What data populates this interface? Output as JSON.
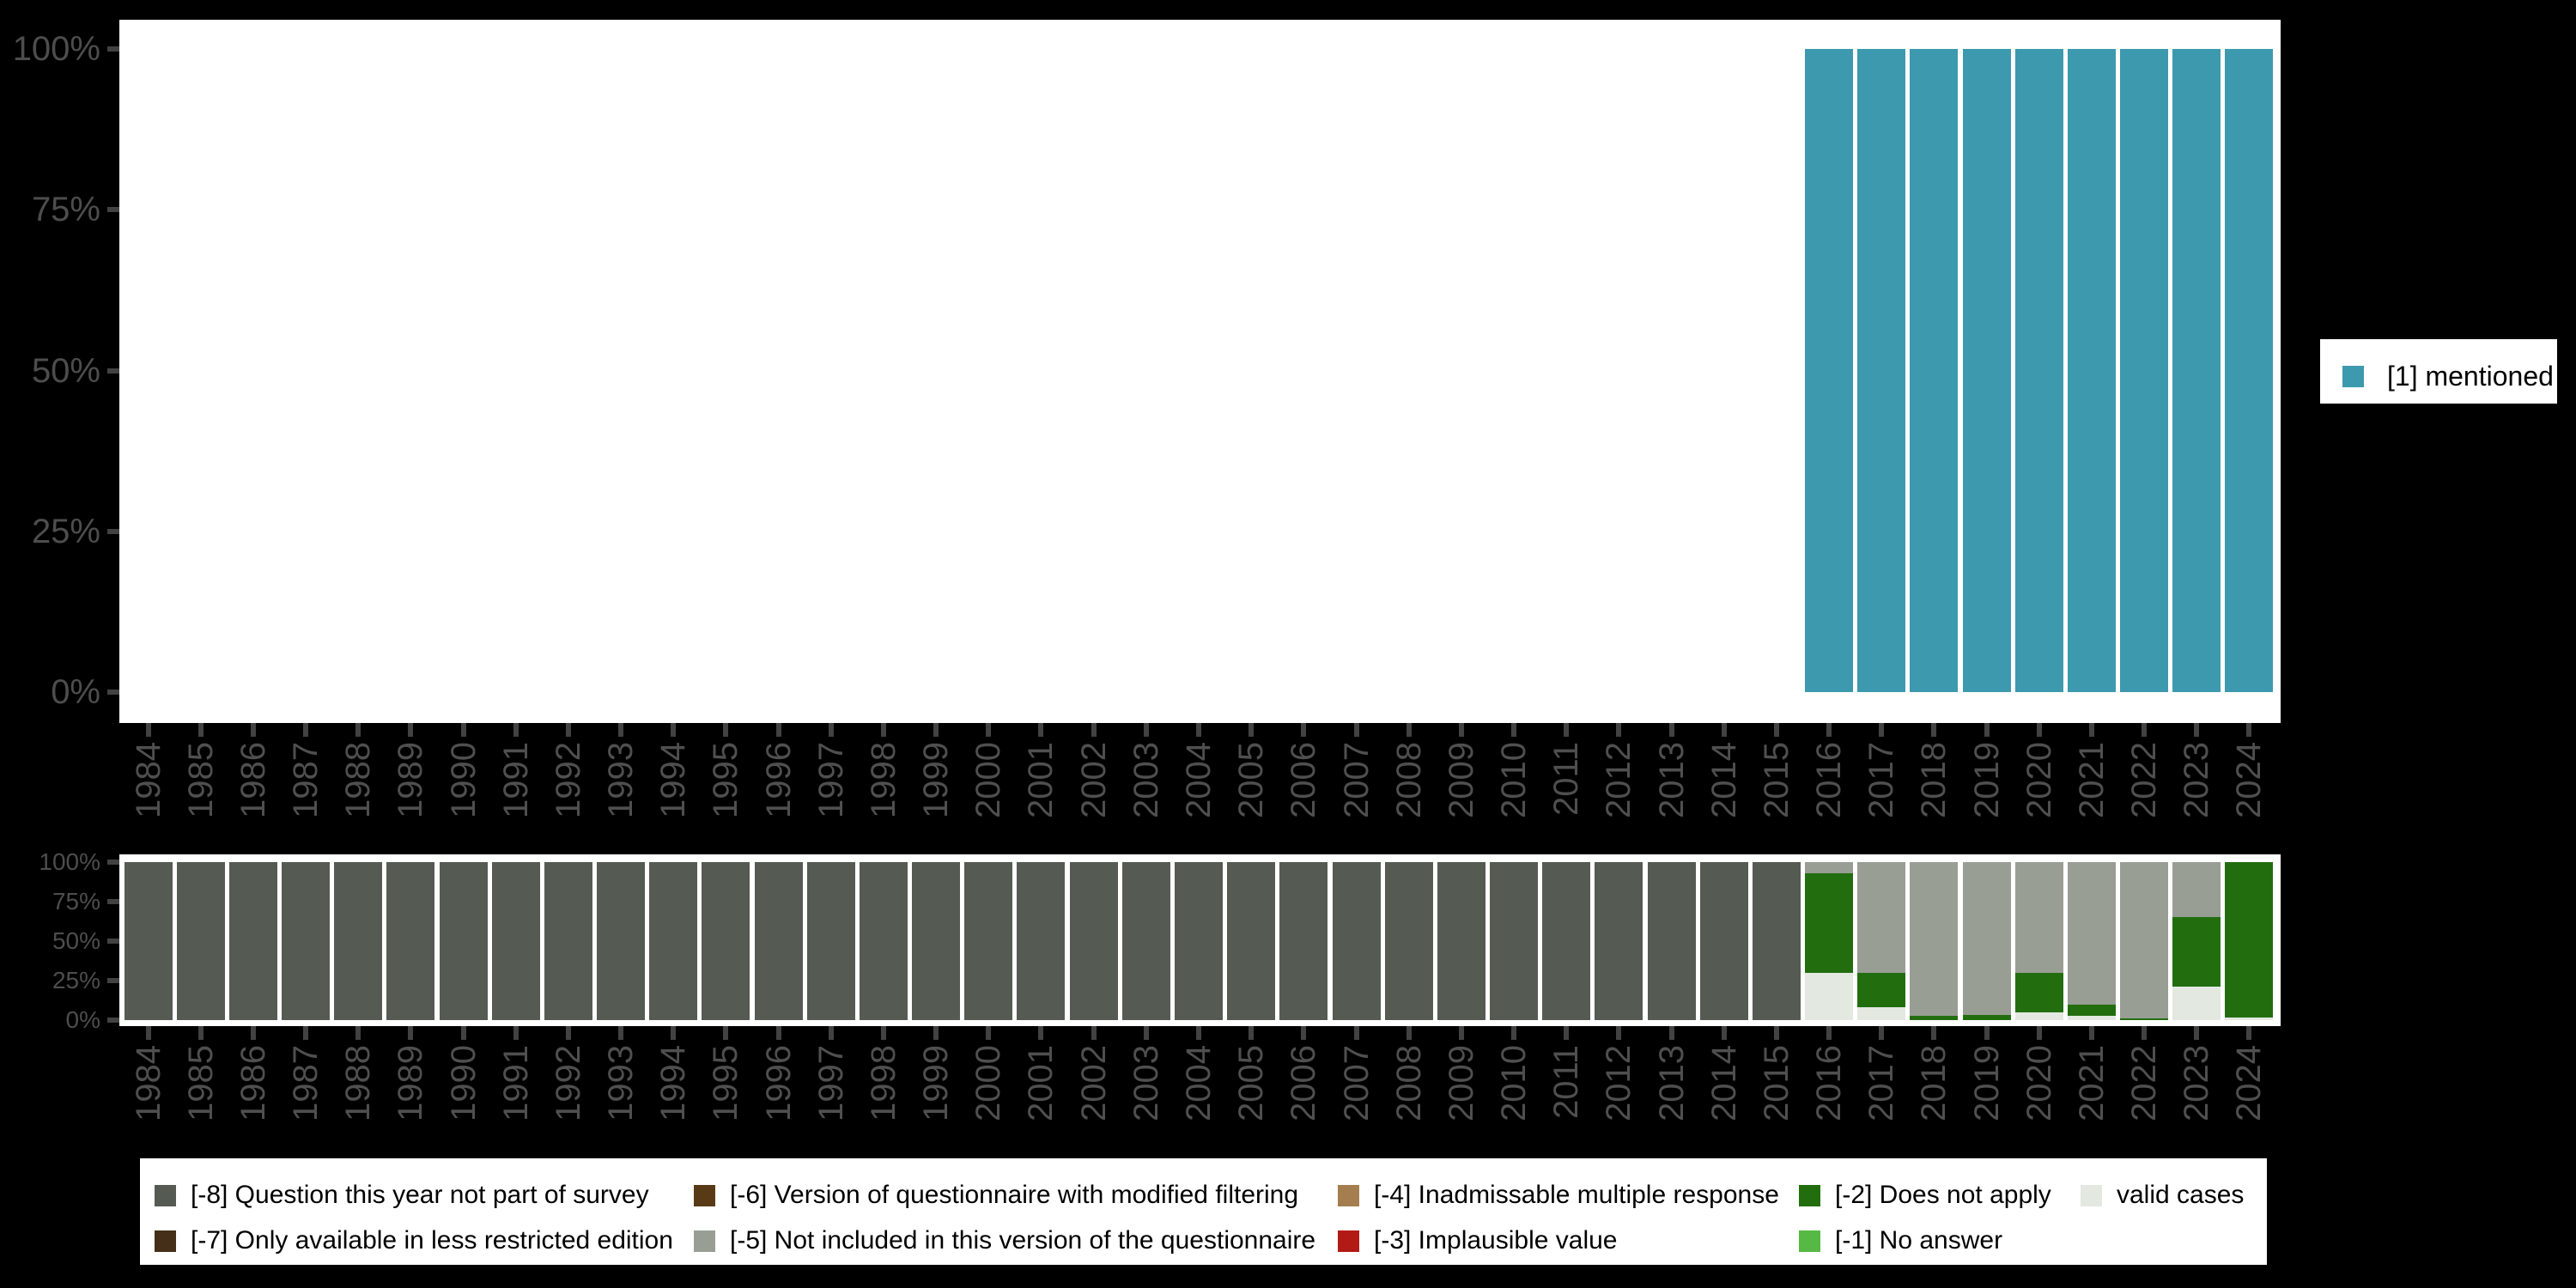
{
  "colors": {
    "background": "#000000",
    "panel": "#ffffff",
    "axis_text": "#4d4d4d",
    "tick": "#424242",
    "mentioned_teal": "#3d99ae",
    "not_part_gray_green": "#555b53",
    "not_included_gray": "#999e95",
    "does_not_apply_green": "#226e0f",
    "valid_cases_light": "#e3e8e0",
    "less_restricted_brown": "#452f18",
    "modified_filtering_brown": "#593a16",
    "inadmissable_tan": "#a57e50",
    "implausible_red": "#b21a16",
    "no_answer_green": "#56b945"
  },
  "top_legend": {
    "label": "[1] mentioned",
    "color": "#3d99ae"
  },
  "bottom_legend": {
    "items": [
      {
        "label": "[-8] Question this year not part of survey",
        "color": "#555b53",
        "row": 0,
        "col": 0
      },
      {
        "label": "[-7] Only available in less restricted edition",
        "color": "#452f18",
        "row": 1,
        "col": 0
      },
      {
        "label": "[-6] Version of questionnaire with modified filtering",
        "color": "#593a16",
        "row": 0,
        "col": 1
      },
      {
        "label": "[-5] Not included in this version of the questionnaire",
        "color": "#999e95",
        "row": 1,
        "col": 1
      },
      {
        "label": "[-4] Inadmissable multiple response",
        "color": "#a57e50",
        "row": 0,
        "col": 2
      },
      {
        "label": "[-3] Implausible value",
        "color": "#b21a16",
        "row": 1,
        "col": 2
      },
      {
        "label": "[-2] Does not apply",
        "color": "#226e0f",
        "row": 0,
        "col": 3
      },
      {
        "label": "[-1] No answer",
        "color": "#56b945",
        "row": 1,
        "col": 3
      },
      {
        "label": "valid cases",
        "color": "#e3e8e0",
        "row": 0,
        "col": 4
      }
    ]
  },
  "chart_data": [
    {
      "type": "bar",
      "title": "",
      "stacked": true,
      "categories": [
        "1984",
        "1985",
        "1986",
        "1987",
        "1988",
        "1989",
        "1990",
        "1991",
        "1992",
        "1993",
        "1994",
        "1995",
        "1996",
        "1997",
        "1998",
        "1999",
        "2000",
        "2001",
        "2002",
        "2003",
        "2004",
        "2005",
        "2006",
        "2007",
        "2008",
        "2009",
        "2010",
        "2011",
        "2012",
        "2013",
        "2014",
        "2015",
        "2016",
        "2017",
        "2018",
        "2019",
        "2020",
        "2021",
        "2022",
        "2023",
        "2024"
      ],
      "yticks": [
        "0%",
        "25%",
        "50%",
        "75%",
        "100%"
      ],
      "ylim": [
        0,
        100
      ],
      "legend_position": "right",
      "series": [
        {
          "name": "[1] mentioned",
          "color": "#3d99ae",
          "values": [
            0,
            0,
            0,
            0,
            0,
            0,
            0,
            0,
            0,
            0,
            0,
            0,
            0,
            0,
            0,
            0,
            0,
            0,
            0,
            0,
            0,
            0,
            0,
            0,
            0,
            0,
            0,
            0,
            0,
            0,
            0,
            0,
            100,
            100,
            100,
            100,
            100,
            100,
            100,
            100,
            100
          ]
        }
      ]
    },
    {
      "type": "bar",
      "title": "",
      "stacked": true,
      "categories": [
        "1984",
        "1985",
        "1986",
        "1987",
        "1988",
        "1989",
        "1990",
        "1991",
        "1992",
        "1993",
        "1994",
        "1995",
        "1996",
        "1997",
        "1998",
        "1999",
        "2000",
        "2001",
        "2002",
        "2003",
        "2004",
        "2005",
        "2006",
        "2007",
        "2008",
        "2009",
        "2010",
        "2011",
        "2012",
        "2013",
        "2014",
        "2015",
        "2016",
        "2017",
        "2018",
        "2019",
        "2020",
        "2021",
        "2022",
        "2023",
        "2024"
      ],
      "yticks": [
        "0%",
        "25%",
        "50%",
        "75%",
        "100%"
      ],
      "ylim": [
        0,
        100
      ],
      "legend_position": "bottom",
      "series": [
        {
          "name": "valid cases",
          "color": "#e3e8e0",
          "values": [
            0,
            0,
            0,
            0,
            0,
            0,
            0,
            0,
            0,
            0,
            0,
            0,
            0,
            0,
            0,
            0,
            0,
            0,
            0,
            0,
            0,
            0,
            0,
            0,
            0,
            0,
            0,
            0,
            0,
            0,
            0,
            0,
            30,
            8,
            0,
            0,
            5,
            2.7,
            0,
            21,
            1.5
          ]
        },
        {
          "name": "[-2] Does not apply",
          "color": "#226e0f",
          "values": [
            0,
            0,
            0,
            0,
            0,
            0,
            0,
            0,
            0,
            0,
            0,
            0,
            0,
            0,
            0,
            0,
            0,
            0,
            0,
            0,
            0,
            0,
            0,
            0,
            0,
            0,
            0,
            0,
            0,
            0,
            0,
            0,
            63,
            22,
            2.7,
            3.3,
            25,
            7.3,
            1,
            44,
            98.5
          ]
        },
        {
          "name": "[-5] Not included in this version of the questionnaire",
          "color": "#999e95",
          "values": [
            0,
            0,
            0,
            0,
            0,
            0,
            0,
            0,
            0,
            0,
            0,
            0,
            0,
            0,
            0,
            0,
            0,
            0,
            0,
            0,
            0,
            0,
            0,
            0,
            0,
            0,
            0,
            0,
            0,
            0,
            0,
            0,
            7,
            70,
            97.3,
            96.7,
            70,
            90,
            99,
            35,
            0
          ]
        },
        {
          "name": "[-8] Question this year not part of survey",
          "color": "#555b53",
          "values": [
            100,
            100,
            100,
            100,
            100,
            100,
            100,
            100,
            100,
            100,
            100,
            100,
            100,
            100,
            100,
            100,
            100,
            100,
            100,
            100,
            100,
            100,
            100,
            100,
            100,
            100,
            100,
            100,
            100,
            100,
            100,
            100,
            0,
            0,
            0,
            0,
            0,
            0,
            0,
            0,
            0
          ]
        }
      ]
    }
  ]
}
